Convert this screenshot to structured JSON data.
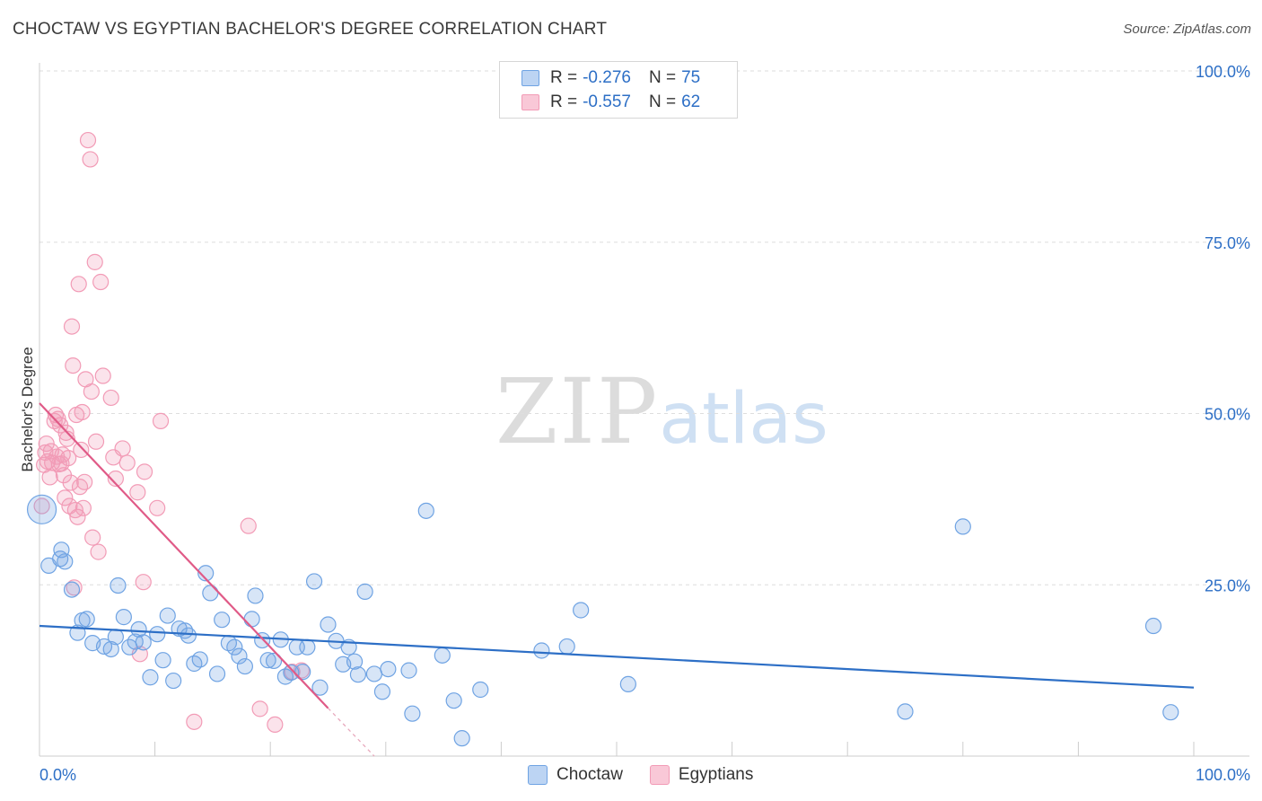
{
  "title": "CHOCTAW VS EGYPTIAN BACHELOR'S DEGREE CORRELATION CHART",
  "source_prefix": "Source: ",
  "source_name": "ZipAtlas.com",
  "watermark": {
    "zip": "ZIP",
    "atlas": "atlas"
  },
  "colors": {
    "choctaw": "#6fa3e3",
    "egyptians": "#f29bb6",
    "choctaw_line": "#2d6fc6",
    "egyptians_line": "#e05a87",
    "tick_label": "#2d6fc6"
  },
  "legend": {
    "rows": [
      {
        "r_label": "R = ",
        "r_value": "-0.276",
        "n_label": "N = ",
        "n_value": "75"
      },
      {
        "r_label": "R = ",
        "r_value": "-0.557",
        "n_label": "N = ",
        "n_value": "62"
      }
    ]
  },
  "bottom_legend": [
    {
      "name": "Choctaw"
    },
    {
      "name": "Egyptians"
    }
  ],
  "chart_data": {
    "type": "scatter",
    "title": "CHOCTAW VS EGYPTIAN BACHELOR'S DEGREE CORRELATION CHART",
    "xlabel": "",
    "ylabel": "Bachelor's Degree",
    "xlim": [
      0,
      100
    ],
    "ylim": [
      0,
      105
    ],
    "x_tick_labels": [
      "0.0%",
      "100.0%"
    ],
    "y_ticks": [
      25,
      50,
      75,
      100
    ],
    "y_tick_labels": [
      "25.0%",
      "50.0%",
      "75.0%",
      "100.0%"
    ],
    "grid": "horizontal dashed",
    "legend_position": "top-center",
    "series": [
      {
        "name": "Choctaw",
        "r": -0.276,
        "n": 75,
        "trend": {
          "x": [
            0,
            100
          ],
          "y": [
            19.0,
            10.0
          ]
        },
        "points": [
          [
            0.2,
            36.0
          ],
          [
            0.8,
            27.8
          ],
          [
            1.8,
            28.8
          ],
          [
            1.9,
            30.1
          ],
          [
            2.2,
            28.4
          ],
          [
            2.8,
            24.3
          ],
          [
            3.3,
            18.0
          ],
          [
            3.7,
            19.8
          ],
          [
            4.1,
            20.0
          ],
          [
            4.6,
            16.5
          ],
          [
            5.6,
            16.0
          ],
          [
            6.2,
            15.6
          ],
          [
            6.6,
            17.4
          ],
          [
            6.8,
            24.9
          ],
          [
            7.3,
            20.3
          ],
          [
            7.8,
            15.9
          ],
          [
            8.3,
            16.7
          ],
          [
            8.6,
            18.5
          ],
          [
            9.0,
            16.6
          ],
          [
            9.6,
            11.5
          ],
          [
            10.2,
            17.8
          ],
          [
            10.7,
            14.0
          ],
          [
            11.1,
            20.5
          ],
          [
            11.6,
            11.0
          ],
          [
            12.1,
            18.6
          ],
          [
            12.6,
            18.3
          ],
          [
            12.9,
            17.6
          ],
          [
            13.4,
            13.5
          ],
          [
            13.9,
            14.1
          ],
          [
            14.4,
            26.7
          ],
          [
            14.8,
            23.8
          ],
          [
            15.4,
            12.0
          ],
          [
            15.8,
            19.9
          ],
          [
            16.4,
            16.5
          ],
          [
            16.9,
            15.9
          ],
          [
            17.3,
            14.6
          ],
          [
            17.8,
            13.1
          ],
          [
            18.4,
            20.0
          ],
          [
            18.7,
            23.4
          ],
          [
            19.3,
            16.9
          ],
          [
            19.8,
            14.0
          ],
          [
            20.3,
            13.9
          ],
          [
            20.9,
            17.0
          ],
          [
            21.3,
            11.6
          ],
          [
            21.8,
            12.2
          ],
          [
            22.3,
            15.9
          ],
          [
            22.8,
            12.3
          ],
          [
            23.2,
            15.9
          ],
          [
            23.8,
            25.5
          ],
          [
            24.3,
            10.0
          ],
          [
            25.0,
            19.2
          ],
          [
            25.7,
            16.8
          ],
          [
            26.3,
            13.4
          ],
          [
            26.8,
            15.9
          ],
          [
            27.3,
            13.8
          ],
          [
            27.6,
            11.9
          ],
          [
            28.2,
            24.0
          ],
          [
            29.0,
            12.0
          ],
          [
            29.7,
            9.4
          ],
          [
            30.2,
            12.7
          ],
          [
            32.0,
            12.5
          ],
          [
            32.3,
            6.2
          ],
          [
            33.5,
            35.8
          ],
          [
            34.9,
            14.7
          ],
          [
            35.9,
            8.1
          ],
          [
            36.6,
            2.6
          ],
          [
            38.2,
            9.7
          ],
          [
            43.5,
            15.4
          ],
          [
            45.7,
            16.0
          ],
          [
            46.9,
            21.3
          ],
          [
            51.0,
            10.5
          ],
          [
            75.0,
            6.5
          ],
          [
            80.0,
            33.5
          ],
          [
            96.5,
            19.0
          ],
          [
            98.0,
            6.4
          ]
        ]
      },
      {
        "name": "Egyptians",
        "r": -0.557,
        "n": 62,
        "trend": {
          "x": [
            0,
            25
          ],
          "y": [
            51.5,
            7.0
          ]
        },
        "trend_dashed_extension": {
          "x": [
            25,
            29
          ],
          "y": [
            7.0,
            0.0
          ]
        },
        "points": [
          [
            0.2,
            36.5
          ],
          [
            0.4,
            42.5
          ],
          [
            0.5,
            44.3
          ],
          [
            0.6,
            45.6
          ],
          [
            0.7,
            43.0
          ],
          [
            0.9,
            40.7
          ],
          [
            1.0,
            44.5
          ],
          [
            1.1,
            42.8
          ],
          [
            1.3,
            48.9
          ],
          [
            1.4,
            49.8
          ],
          [
            1.5,
            43.7
          ],
          [
            1.6,
            49.2
          ],
          [
            1.7,
            42.6
          ],
          [
            1.8,
            48.3
          ],
          [
            1.9,
            42.7
          ],
          [
            2.0,
            44.0
          ],
          [
            2.1,
            41.0
          ],
          [
            2.2,
            37.7
          ],
          [
            2.3,
            47.2
          ],
          [
            2.4,
            46.3
          ],
          [
            2.5,
            43.5
          ],
          [
            2.6,
            36.5
          ],
          [
            2.7,
            39.9
          ],
          [
            2.8,
            62.7
          ],
          [
            2.9,
            57.0
          ],
          [
            3.0,
            24.6
          ],
          [
            3.1,
            35.9
          ],
          [
            3.2,
            49.8
          ],
          [
            3.3,
            34.9
          ],
          [
            3.4,
            68.9
          ],
          [
            3.5,
            39.3
          ],
          [
            3.6,
            44.7
          ],
          [
            3.7,
            50.2
          ],
          [
            3.8,
            36.2
          ],
          [
            3.9,
            40.0
          ],
          [
            4.0,
            55.0
          ],
          [
            4.2,
            89.9
          ],
          [
            4.4,
            87.1
          ],
          [
            4.5,
            53.2
          ],
          [
            4.6,
            31.9
          ],
          [
            4.8,
            72.1
          ],
          [
            4.9,
            45.9
          ],
          [
            5.1,
            29.8
          ],
          [
            5.3,
            69.2
          ],
          [
            5.5,
            55.5
          ],
          [
            6.2,
            52.3
          ],
          [
            6.4,
            43.6
          ],
          [
            6.6,
            40.5
          ],
          [
            7.2,
            44.9
          ],
          [
            7.6,
            42.8
          ],
          [
            8.5,
            38.5
          ],
          [
            8.7,
            14.9
          ],
          [
            9.1,
            41.5
          ],
          [
            9.0,
            25.4
          ],
          [
            10.2,
            36.2
          ],
          [
            10.5,
            48.9
          ],
          [
            13.4,
            5.0
          ],
          [
            18.1,
            33.6
          ],
          [
            19.1,
            6.9
          ],
          [
            20.4,
            4.6
          ],
          [
            21.9,
            12.3
          ],
          [
            22.7,
            12.5
          ]
        ]
      }
    ]
  }
}
